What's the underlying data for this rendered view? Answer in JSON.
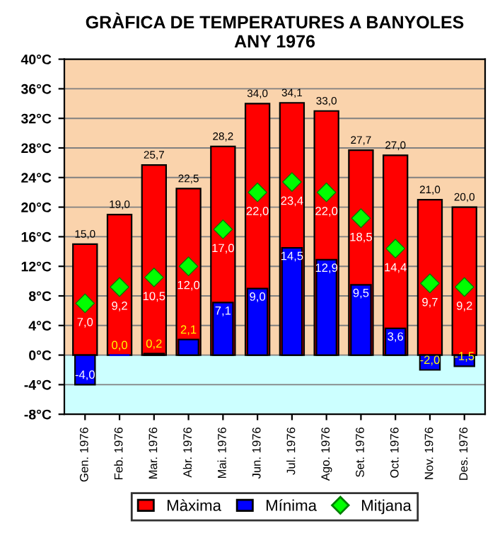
{
  "chart_data": {
    "type": "bar",
    "title": "GRÀFICA DE TEMPERATURES A BANYOLES\nANY 1976",
    "categories": [
      "Gen. 1976",
      "Feb. 1976",
      "Mar. 1976",
      "Abr. 1976",
      "Mai. 1976",
      "Jun. 1976",
      "Jul. 1976",
      "Ago. 1976",
      "Set. 1976",
      "Oct. 1976",
      "Nov. 1976",
      "Des. 1976"
    ],
    "series": [
      {
        "name": "Màxima",
        "color": "#ff0000",
        "values": [
          15.0,
          19.0,
          25.7,
          22.5,
          28.2,
          34.0,
          34.1,
          33.0,
          27.7,
          27.0,
          21.0,
          20.0
        ],
        "value_labels": [
          "15,0",
          "19,0",
          "25,7",
          "22,5",
          "28,2",
          "34,0",
          "34,1",
          "33,0",
          "27,7",
          "27,0",
          "21,0",
          "20,0"
        ]
      },
      {
        "name": "Mínima",
        "color": "#0000ff",
        "values": [
          -4.0,
          0.0,
          0.2,
          2.1,
          7.1,
          9.0,
          14.5,
          12.9,
          9.5,
          3.6,
          -2.0,
          -1.5
        ],
        "value_labels": [
          "-4,0",
          "0,0",
          "0,2",
          "2,1",
          "7,1",
          "9,0",
          "14,5",
          "12,9",
          "9,5",
          "3,6",
          "-2,0",
          "-1,5"
        ]
      },
      {
        "name": "Mitjana",
        "type": "scatter",
        "color": "#00ff00",
        "marker": "diamond",
        "values": [
          7.0,
          9.2,
          10.5,
          12.0,
          17.0,
          22.0,
          23.4,
          22.0,
          18.5,
          14.4,
          9.7,
          9.2
        ],
        "value_labels": [
          "7,0",
          "9,2",
          "10,5",
          "12,0",
          "17,0",
          "22,0",
          "23,4",
          "22,0",
          "18,5",
          "14,4",
          "9,7",
          "9,2"
        ]
      }
    ],
    "ylim": [
      -8,
      40
    ],
    "yticks": [
      {
        "value": -8,
        "label": "-8°C"
      },
      {
        "value": -4,
        "label": "-4°C"
      },
      {
        "value": 0,
        "label": "0°C"
      },
      {
        "value": 4,
        "label": "4°C"
      },
      {
        "value": 8,
        "label": "8°C"
      },
      {
        "value": 12,
        "label": "12°C"
      },
      {
        "value": 16,
        "label": "16°C"
      },
      {
        "value": 20,
        "label": "20°C"
      },
      {
        "value": 24,
        "label": "24°C"
      },
      {
        "value": 28,
        "label": "28°C"
      },
      {
        "value": 32,
        "label": "32°C"
      },
      {
        "value": 36,
        "label": "36°C"
      },
      {
        "value": 40,
        "label": "40°C"
      }
    ],
    "bands": [
      {
        "axis": "y",
        "from": 0,
        "to": 40,
        "color": "#fad3ac"
      },
      {
        "axis": "y",
        "from": -8,
        "to": 0,
        "color": "#ccffff"
      }
    ],
    "grid": "y",
    "legend": "bottom"
  }
}
